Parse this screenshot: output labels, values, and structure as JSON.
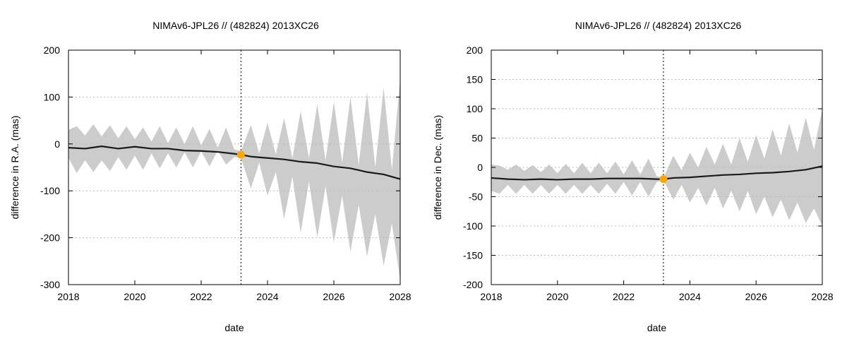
{
  "chart_data": [
    {
      "type": "area",
      "title": "NIMAv6-JPL26 // (482824) 2013XC26",
      "xlabel": "date",
      "ylabel": "difference in R.A. (mas)",
      "xlim": [
        2018,
        2028
      ],
      "ylim": [
        -300,
        200
      ],
      "xticks": [
        2018,
        2020,
        2022,
        2024,
        2026,
        2028
      ],
      "yticks": [
        -300,
        -200,
        -100,
        0,
        100,
        200
      ],
      "grid": true,
      "vline_x": 2023.2,
      "marker": {
        "x": 2023.2,
        "y": -23
      },
      "colors": {
        "band": "#cccccc",
        "line": "#1a1a1a",
        "marker": "#ffa500",
        "grid": "#bbbbbb"
      },
      "series": [
        {
          "name": "upper bound",
          "x": [
            2018.0,
            2018.25,
            2018.5,
            2018.75,
            2019.0,
            2019.25,
            2019.5,
            2019.75,
            2020.0,
            2020.25,
            2020.5,
            2020.75,
            2021.0,
            2021.25,
            2021.5,
            2021.75,
            2022.0,
            2022.25,
            2022.5,
            2022.75,
            2023.0,
            2023.2,
            2023.5,
            2023.75,
            2024.0,
            2024.25,
            2024.5,
            2024.75,
            2025.0,
            2025.25,
            2025.5,
            2025.75,
            2026.0,
            2026.25,
            2026.5,
            2026.75,
            2027.0,
            2027.25,
            2027.5,
            2027.75,
            2028.0
          ],
          "values": [
            30,
            38,
            18,
            42,
            16,
            40,
            12,
            38,
            10,
            35,
            5,
            38,
            2,
            35,
            0,
            38,
            -3,
            32,
            -8,
            35,
            -12,
            -15,
            40,
            -20,
            45,
            -22,
            55,
            -30,
            70,
            -30,
            85,
            -35,
            90,
            -40,
            100,
            -45,
            110,
            -50,
            120,
            -55,
            140
          ]
        },
        {
          "name": "lower bound",
          "x": [
            2018.0,
            2018.25,
            2018.5,
            2018.75,
            2019.0,
            2019.25,
            2019.5,
            2019.75,
            2020.0,
            2020.25,
            2020.5,
            2020.75,
            2021.0,
            2021.25,
            2021.5,
            2021.75,
            2022.0,
            2022.25,
            2022.5,
            2022.75,
            2023.0,
            2023.2,
            2023.5,
            2023.75,
            2024.0,
            2024.25,
            2024.5,
            2024.75,
            2025.0,
            2025.25,
            2025.5,
            2025.75,
            2026.0,
            2026.25,
            2026.5,
            2026.75,
            2027.0,
            2027.25,
            2027.5,
            2027.75,
            2028.0
          ],
          "values": [
            -30,
            -62,
            -35,
            -60,
            -35,
            -58,
            -28,
            -55,
            -25,
            -55,
            -20,
            -52,
            -20,
            -50,
            -18,
            -50,
            -16,
            -48,
            -14,
            -44,
            -28,
            -30,
            -95,
            -40,
            -110,
            -60,
            -160,
            -70,
            -190,
            -80,
            -200,
            -90,
            -210,
            -110,
            -230,
            -130,
            -240,
            -150,
            -260,
            -170,
            -290
          ]
        },
        {
          "name": "difference",
          "x": [
            2018.0,
            2018.5,
            2019.0,
            2019.5,
            2020.0,
            2020.5,
            2021.0,
            2021.5,
            2022.0,
            2022.5,
            2023.0,
            2023.2,
            2023.5,
            2024.0,
            2024.5,
            2025.0,
            2025.5,
            2026.0,
            2026.5,
            2027.0,
            2027.5,
            2028.0
          ],
          "values": [
            -8,
            -10,
            -5,
            -10,
            -6,
            -10,
            -10,
            -14,
            -15,
            -17,
            -21,
            -23,
            -27,
            -30,
            -33,
            -38,
            -41,
            -48,
            -52,
            -60,
            -65,
            -75
          ]
        }
      ]
    },
    {
      "type": "area",
      "title": "NIMAv6-JPL26 // (482824) 2013XC26",
      "xlabel": "date",
      "ylabel": "difference in Dec. (mas)",
      "xlim": [
        2018,
        2028
      ],
      "ylim": [
        -200,
        200
      ],
      "xticks": [
        2018,
        2020,
        2022,
        2024,
        2026,
        2028
      ],
      "yticks": [
        -200,
        -150,
        -100,
        -50,
        0,
        50,
        100,
        150,
        200
      ],
      "grid": true,
      "vline_x": 2023.2,
      "marker": {
        "x": 2023.2,
        "y": -20
      },
      "colors": {
        "band": "#cccccc",
        "line": "#1a1a1a",
        "marker": "#ffa500",
        "grid": "#bbbbbb"
      },
      "series": [
        {
          "name": "upper bound",
          "x": [
            2018.0,
            2018.25,
            2018.5,
            2018.75,
            2019.0,
            2019.25,
            2019.5,
            2019.75,
            2020.0,
            2020.25,
            2020.5,
            2020.75,
            2021.0,
            2021.25,
            2021.5,
            2021.75,
            2022.0,
            2022.25,
            2022.5,
            2022.75,
            2023.0,
            2023.2,
            2023.5,
            2023.75,
            2024.0,
            2024.25,
            2024.5,
            2024.75,
            2025.0,
            2025.25,
            2025.5,
            2025.75,
            2026.0,
            2026.25,
            2026.5,
            2026.75,
            2027.0,
            2027.25,
            2027.5,
            2027.75,
            2028.0
          ],
          "values": [
            5,
            3,
            -4,
            5,
            -6,
            4,
            -8,
            5,
            -10,
            6,
            -10,
            8,
            -10,
            8,
            -10,
            10,
            -12,
            12,
            -12,
            15,
            -15,
            -18,
            20,
            -5,
            25,
            0,
            35,
            5,
            40,
            5,
            50,
            10,
            55,
            15,
            65,
            20,
            75,
            25,
            85,
            30,
            100
          ]
        },
        {
          "name": "lower bound",
          "x": [
            2018.0,
            2018.25,
            2018.5,
            2018.75,
            2019.0,
            2019.25,
            2019.5,
            2019.75,
            2020.0,
            2020.25,
            2020.5,
            2020.75,
            2021.0,
            2021.25,
            2021.5,
            2021.75,
            2022.0,
            2022.25,
            2022.5,
            2022.75,
            2023.0,
            2023.2,
            2023.5,
            2023.75,
            2024.0,
            2024.25,
            2024.5,
            2024.75,
            2025.0,
            2025.25,
            2025.5,
            2025.75,
            2026.0,
            2026.25,
            2026.5,
            2026.75,
            2027.0,
            2027.25,
            2027.5,
            2027.75,
            2028.0
          ],
          "values": [
            -40,
            -45,
            -30,
            -45,
            -30,
            -45,
            -30,
            -45,
            -30,
            -45,
            -30,
            -45,
            -30,
            -45,
            -28,
            -45,
            -25,
            -48,
            -25,
            -50,
            -25,
            -22,
            -55,
            -30,
            -60,
            -35,
            -65,
            -35,
            -70,
            -40,
            -75,
            -40,
            -80,
            -50,
            -85,
            -55,
            -90,
            -60,
            -95,
            -70,
            -100
          ]
        },
        {
          "name": "difference",
          "x": [
            2018.0,
            2018.5,
            2019.0,
            2019.5,
            2020.0,
            2020.5,
            2021.0,
            2021.5,
            2022.0,
            2022.5,
            2023.0,
            2023.2,
            2023.5,
            2024.0,
            2024.5,
            2025.0,
            2025.5,
            2026.0,
            2026.5,
            2027.0,
            2027.5,
            2028.0
          ],
          "values": [
            -18,
            -20,
            -21,
            -20,
            -21,
            -20,
            -20,
            -19,
            -19,
            -19,
            -20,
            -20,
            -18,
            -17,
            -15,
            -13,
            -12,
            -10,
            -9,
            -7,
            -4,
            2
          ]
        }
      ]
    }
  ]
}
